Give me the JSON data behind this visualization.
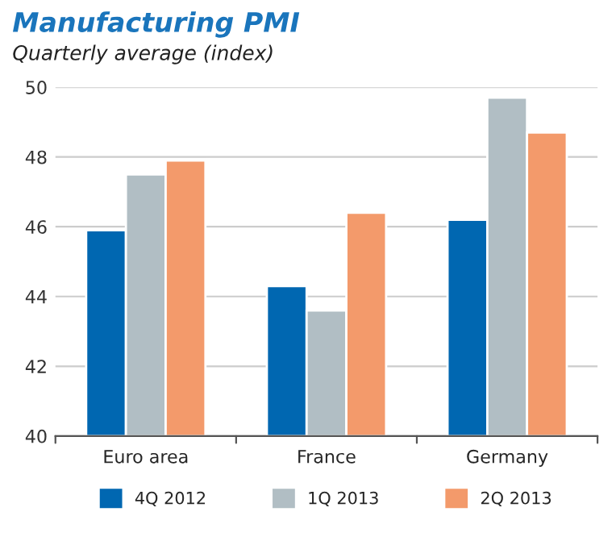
{
  "chart_data": {
    "type": "bar",
    "title": "Manufacturing PMI",
    "subtitle": "Quarterly average (index)",
    "categories": [
      "Euro area",
      "France",
      "Germany"
    ],
    "series": [
      {
        "name": "4Q 2012",
        "color": "#0067b1",
        "values": [
          45.9,
          44.3,
          46.2
        ]
      },
      {
        "name": "1Q 2013",
        "color": "#b1bec4",
        "values": [
          47.5,
          43.6,
          49.7
        ]
      },
      {
        "name": "2Q 2013",
        "color": "#f39a6b",
        "values": [
          47.9,
          46.4,
          48.7
        ]
      }
    ],
    "ylim": [
      40,
      50
    ],
    "yticks": [
      40,
      42,
      44,
      46,
      48,
      50
    ],
    "grid": "y",
    "legend": "bottom"
  }
}
